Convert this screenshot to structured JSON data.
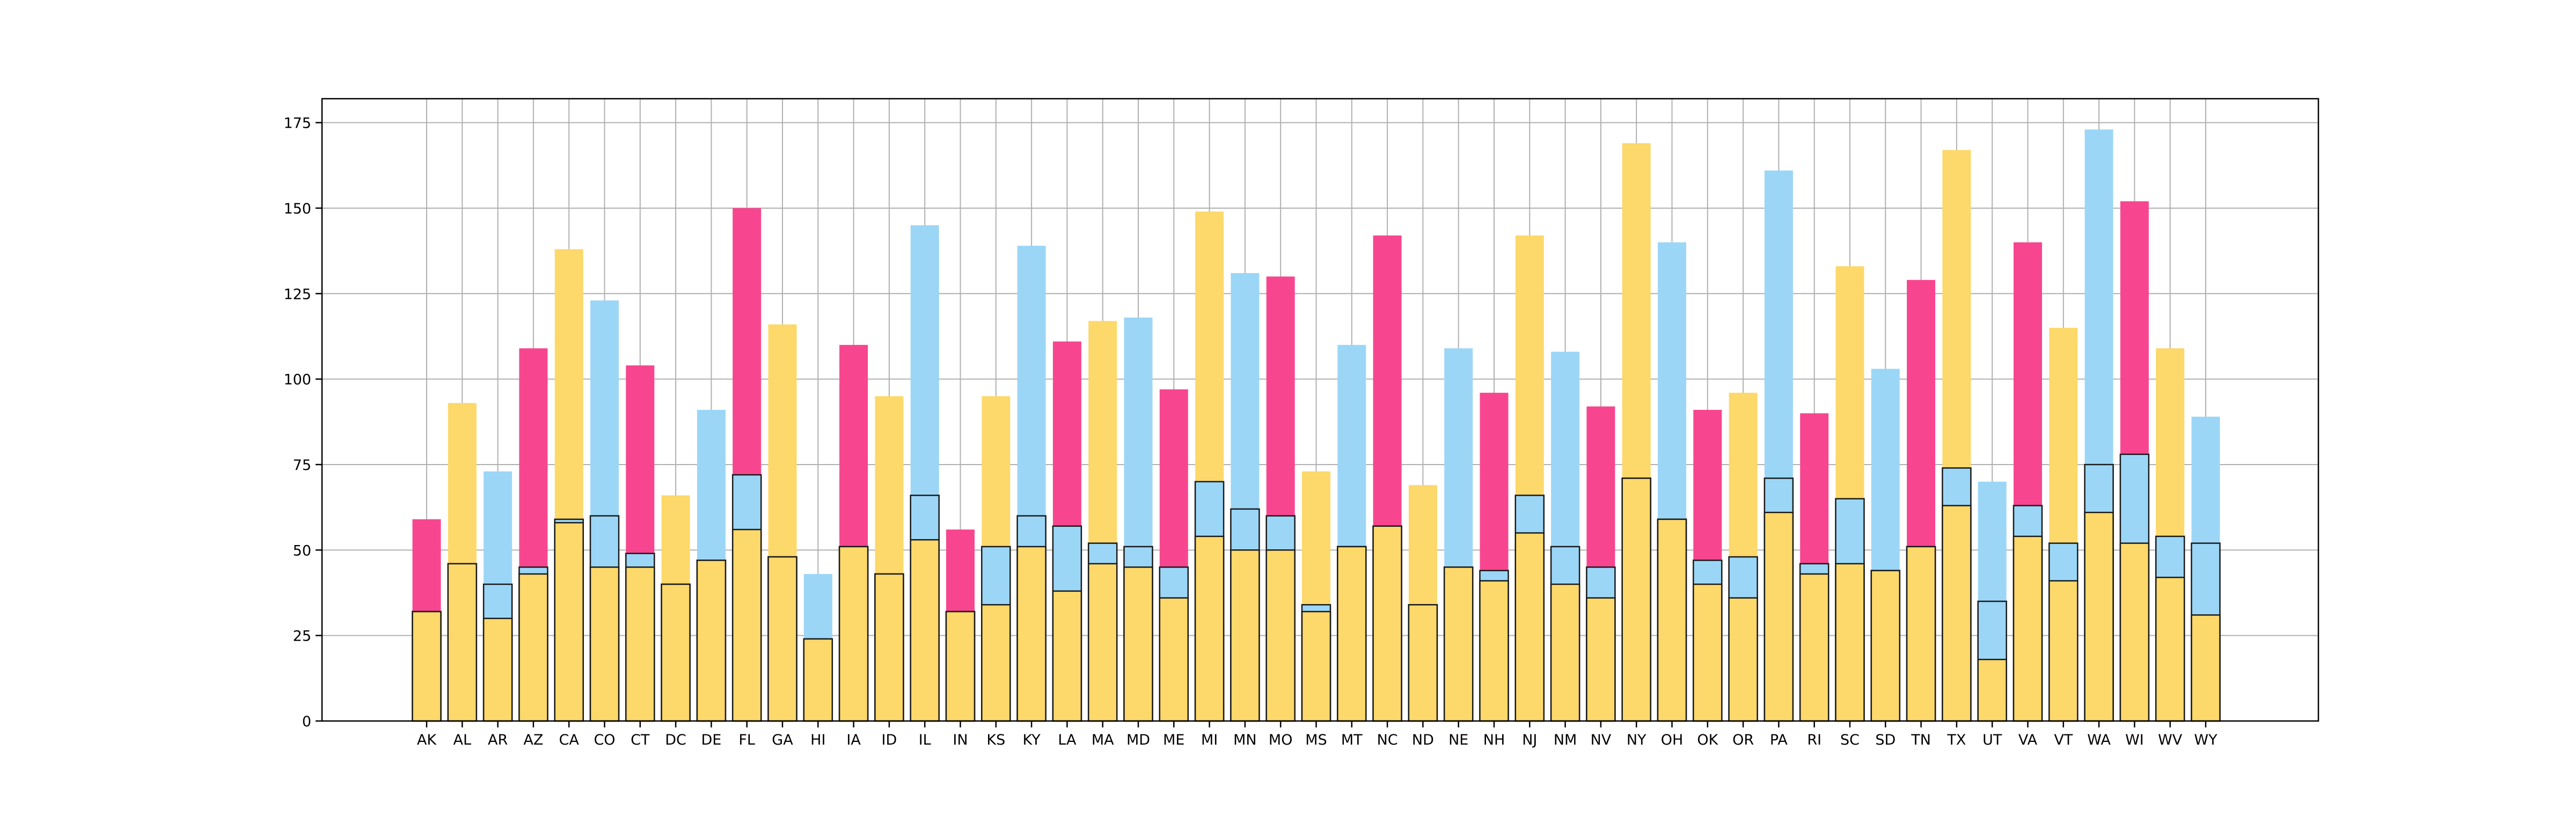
{
  "chart_data": {
    "type": "bar",
    "title": "",
    "xlabel": "",
    "ylabel": "",
    "ylim": [
      0,
      182
    ],
    "yticks": [
      0,
      25,
      50,
      75,
      100,
      125,
      150,
      175
    ],
    "grid": true,
    "legend": "none",
    "categories": [
      "AK",
      "AL",
      "AR",
      "AZ",
      "CA",
      "CO",
      "CT",
      "DC",
      "DE",
      "FL",
      "GA",
      "HI",
      "IA",
      "ID",
      "IL",
      "IN",
      "KS",
      "KY",
      "LA",
      "MA",
      "MD",
      "ME",
      "MI",
      "MN",
      "MO",
      "MS",
      "MT",
      "NC",
      "ND",
      "NE",
      "NH",
      "NJ",
      "NM",
      "NV",
      "NY",
      "OH",
      "OK",
      "OR",
      "PA",
      "RI",
      "SC",
      "SD",
      "TN",
      "TX",
      "UT",
      "VA",
      "VT",
      "WA",
      "WI",
      "WV",
      "WY"
    ],
    "totals": [
      59,
      93,
      73,
      109,
      138,
      123,
      104,
      66,
      91,
      150,
      116,
      43,
      110,
      95,
      145,
      56,
      95,
      139,
      111,
      117,
      118,
      97,
      149,
      131,
      130,
      73,
      110,
      142,
      69,
      109,
      96,
      142,
      108,
      92,
      169,
      140,
      91,
      96,
      161,
      90,
      133,
      103,
      129,
      167,
      70,
      140,
      115,
      173,
      152,
      109,
      89
    ],
    "total_colors": [
      "#f7468f",
      "#fdd86a",
      "#9bd6f7",
      "#f7468f",
      "#fdd86a",
      "#9bd6f7",
      "#f7468f",
      "#fdd86a",
      "#9bd6f7",
      "#f7468f",
      "#fdd86a",
      "#9bd6f7",
      "#f7468f",
      "#fdd86a",
      "#9bd6f7",
      "#f7468f",
      "#fdd86a",
      "#9bd6f7",
      "#f7468f",
      "#fdd86a",
      "#9bd6f7",
      "#f7468f",
      "#fdd86a",
      "#9bd6f7",
      "#f7468f",
      "#fdd86a",
      "#9bd6f7",
      "#f7468f",
      "#fdd86a",
      "#9bd6f7",
      "#f7468f",
      "#fdd86a",
      "#9bd6f7",
      "#f7468f",
      "#fdd86a",
      "#9bd6f7",
      "#f7468f",
      "#fdd86a",
      "#9bd6f7",
      "#f7468f",
      "#fdd86a",
      "#9bd6f7",
      "#f7468f",
      "#fdd86a",
      "#9bd6f7",
      "#f7468f",
      "#fdd86a",
      "#9bd6f7",
      "#f7468f",
      "#fdd86a",
      "#9bd6f7"
    ],
    "series": [
      {
        "color": "#9bd6f7",
        "values": [
          32,
          46,
          40,
          45,
          59,
          60,
          49,
          40,
          47,
          72,
          48,
          24,
          51,
          43,
          66,
          32,
          51,
          60,
          57,
          52,
          51,
          45,
          70,
          62,
          60,
          34,
          51,
          57,
          34,
          45,
          44,
          66,
          51,
          45,
          71,
          59,
          47,
          48,
          71,
          46,
          65,
          44,
          51,
          74,
          35,
          63,
          52,
          75,
          78,
          54,
          52
        ]
      },
      {
        "color": "#fdd86a",
        "values": [
          32,
          46,
          30,
          43,
          58,
          45,
          45,
          40,
          47,
          56,
          48,
          24,
          51,
          43,
          53,
          32,
          34,
          51,
          38,
          46,
          45,
          36,
          54,
          50,
          50,
          32,
          51,
          57,
          34,
          45,
          41,
          55,
          40,
          36,
          71,
          59,
          40,
          36,
          61,
          43,
          46,
          44,
          51,
          63,
          18,
          54,
          41,
          61,
          52,
          42,
          31
        ]
      }
    ]
  }
}
